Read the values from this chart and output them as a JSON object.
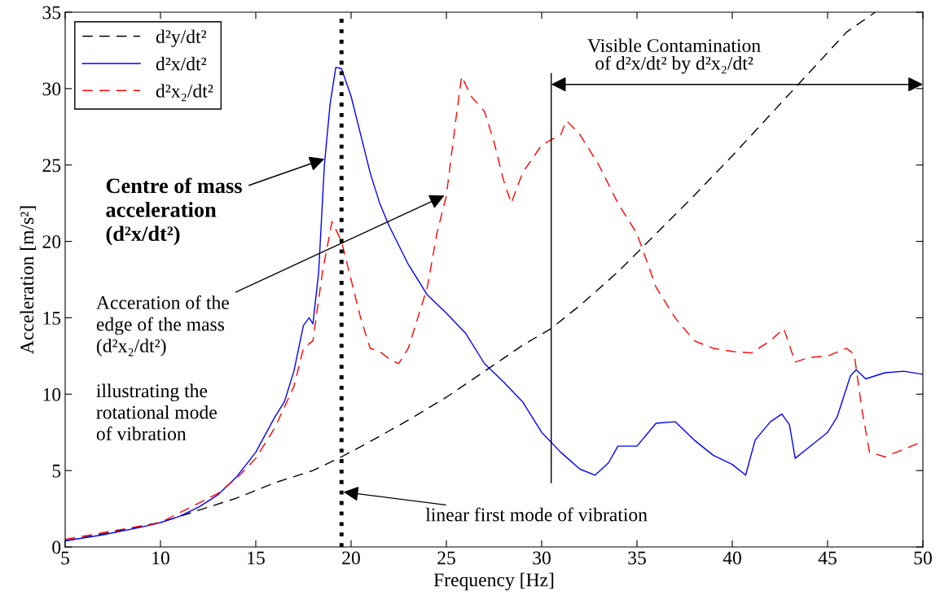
{
  "chart_data": {
    "type": "line",
    "xlabel": "Frequency [Hz]",
    "ylabel": "Acceleration [m/s²]",
    "xlim": [
      5,
      50
    ],
    "xticks": [
      5,
      10,
      15,
      20,
      25,
      30,
      35,
      40,
      45,
      50
    ],
    "ylim": [
      0,
      35
    ],
    "yticks": [
      0,
      5,
      10,
      15,
      20,
      25,
      30,
      35
    ],
    "grid": false,
    "legend": "top left",
    "series": [
      {
        "name": "d²y/dt²",
        "color": "#000000",
        "line_style": "dashed",
        "x": [
          5,
          8,
          10,
          12,
          14,
          16,
          18,
          19.5,
          21,
          23,
          25,
          27,
          29,
          30.5,
          32,
          34,
          36,
          38,
          40,
          42,
          44,
          46,
          47.5
        ],
        "values": [
          0.4,
          1.1,
          1.6,
          2.4,
          3.2,
          4.2,
          5.0,
          5.9,
          6.9,
          8.3,
          9.8,
          11.5,
          13.2,
          14.3,
          15.8,
          18,
          20.5,
          23,
          25.6,
          28.3,
          31,
          33.7,
          35
        ]
      },
      {
        "name": "d²x/dt²",
        "color": "#0000ff",
        "line_style": "solid",
        "x": [
          5,
          7,
          9,
          10,
          11,
          12,
          13,
          14,
          15,
          16,
          16.5,
          17,
          17.5,
          17.8,
          18,
          18.3,
          18.6,
          18.9,
          19.2,
          19.5,
          20,
          20.5,
          21,
          21.5,
          22,
          23,
          24,
          25,
          26,
          27,
          28,
          29,
          30,
          31,
          32,
          32.8,
          33.5,
          34,
          35,
          36,
          37,
          38,
          39,
          40,
          40.7,
          41.2,
          42,
          42.6,
          43,
          43.3,
          44,
          45,
          45.5,
          46.2,
          46.5,
          47,
          48,
          49,
          50
        ],
        "values": [
          0.4,
          0.8,
          1.3,
          1.6,
          2.0,
          2.6,
          3.4,
          4.6,
          6.2,
          8.5,
          9.5,
          11.5,
          14.5,
          15,
          14.6,
          18,
          25,
          29,
          31.4,
          31.3,
          29.5,
          27,
          24.5,
          22.5,
          21,
          18.5,
          16.5,
          15.3,
          14,
          12,
          10.8,
          9.5,
          7.5,
          6.2,
          5.1,
          4.7,
          5.5,
          6.6,
          6.6,
          8.1,
          8.2,
          7,
          6,
          5.4,
          4.7,
          7,
          8.2,
          8.7,
          8,
          5.8,
          6.5,
          7.5,
          8.5,
          11.2,
          11.6,
          11,
          11.4,
          11.5,
          11.3
        ]
      },
      {
        "name": "d²x₂/dt²",
        "color": "#ff0000",
        "line_style": "dashed",
        "x": [
          5,
          10,
          13,
          14,
          15,
          16,
          17,
          17.5,
          18,
          18.5,
          19,
          19.5,
          20,
          20.5,
          21,
          21.5,
          22,
          22.5,
          23,
          24,
          24.5,
          25,
          25.5,
          25.8,
          26.3,
          27,
          27.5,
          28,
          28.4,
          29,
          30,
          31,
          31.3,
          32,
          33,
          34,
          35,
          36,
          37,
          38,
          39,
          40,
          41,
          42,
          42.7,
          43.3,
          44,
          45,
          46,
          46.4,
          46.8,
          47.2,
          48,
          49,
          50
        ],
        "values": [
          0.5,
          1.6,
          3.5,
          4.5,
          5.8,
          7.8,
          10.5,
          13,
          13.5,
          18,
          21.3,
          20,
          17.5,
          15,
          13,
          12.8,
          12.3,
          12,
          13,
          17,
          20.5,
          23,
          28,
          30.8,
          29.5,
          28.5,
          26.5,
          24,
          22.5,
          24.5,
          26.3,
          27,
          27.9,
          27,
          25,
          22.5,
          20.5,
          17,
          15,
          13.5,
          13,
          12.8,
          12.7,
          13.5,
          14.3,
          12.1,
          12.4,
          12.5,
          13,
          12.6,
          9,
          6.2,
          5.9,
          6.4,
          6.9
        ]
      }
    ],
    "ref_lines": [
      {
        "axis": "x",
        "value": 19.5,
        "color": "#000000",
        "line_style": "dotted"
      },
      {
        "axis": "x",
        "value": 30.5,
        "color": "#000000",
        "line_style": "solid"
      }
    ],
    "annotations": [
      {
        "text": "Centre of mass\nacceleration\n(d²x/dt²)",
        "x": 18.6,
        "y": 25.4
      },
      {
        "text": "Acceration of the\nedge of the mass\n(d²x₂/dt²)",
        "x": 24.9,
        "y": 23
      },
      "illustrating the\nrotational mode\nof vibration",
      {
        "text": "linear first mode of vibration",
        "x": 19.6,
        "y": 3.6
      },
      "Visible Contamination\nof d²x/dt² by d²x₂/dt²"
    ]
  }
}
